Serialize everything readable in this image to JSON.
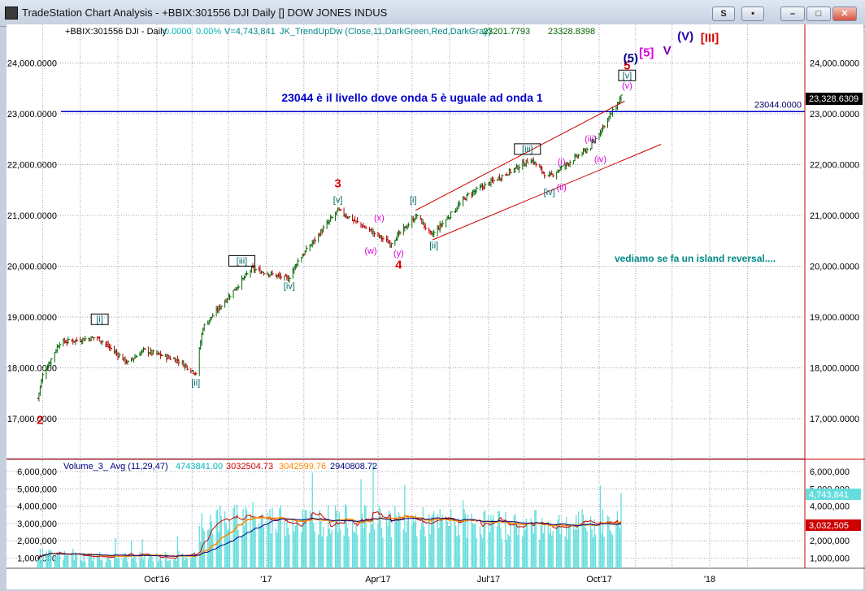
{
  "window": {
    "title": "TradeStation Chart Analysis - +BBIX:301556 DJI Daily [] DOW JONES INDUS",
    "buttons": {
      "symbol": "S",
      "lock": "•",
      "minimize": "–",
      "maximize": "□",
      "close": "✕"
    }
  },
  "colors": {
    "background": "#ffffff",
    "grid": "#9ea6ad",
    "up_bar": "#006400",
    "down_bar": "#b00000",
    "axis_labels": "#000000",
    "right_axis_frame": "#cc0000",
    "channel": "#cc0000",
    "level_line": "#0000cc",
    "volume_bars": "#66dddd",
    "avg_fast": "#cc0000",
    "avg_mid": "#ff8800",
    "avg_slow": "#000080"
  },
  "header": {
    "symbol": "+BBIX:301556 DJI - Daily",
    "change": "0.0000",
    "change_pct": "0.00%",
    "volume": "V=4,743,841",
    "indicator": "JK_TrendUpDw (Close,11,DarkGreen,Red,DarkGray)",
    "val1": "23201.7793",
    "val2": "23328.8398"
  },
  "volume_header": {
    "name": "Volume_3_ Avg (11,29,47)",
    "v": "4743841.00",
    "a1": "3032504.73",
    "a2": "3042599.76",
    "a3": "2940808.72"
  },
  "annotations": {
    "main_note": "23044 è il livello dove onda 5 è uguale ad onda 1",
    "level_tag": "23044.0000",
    "price_tag": "23,328.6309",
    "side_note": "vediamo se fa un island reversal....",
    "vol_tag_top": "4,743,841",
    "vol_tag_bottom": "3,032,505"
  },
  "chart_data": [
    {
      "type": "ohlc",
      "title": "+BBIX:301556 DJI - Daily",
      "ylim": [
        16400,
        24800
      ],
      "y_ticks": [
        "17,000.0000",
        "18,000.0000",
        "19,000.0000",
        "20,000.0000",
        "21,000.0000",
        "22,000.0000",
        "23,000.0000",
        "24,000.0000"
      ],
      "y_tick_values": [
        17000,
        18000,
        19000,
        20000,
        21000,
        22000,
        23000,
        24000
      ],
      "x_ticks": [
        "Oct'16",
        "'17",
        "Apr'17",
        "Jul'17",
        "Oct'17",
        "'18"
      ],
      "grid": true,
      "price_path": [
        {
          "date": "2016-06-27",
          "close": 17400
        },
        {
          "date": "2016-07-01",
          "close": 17850
        },
        {
          "date": "2016-07-15",
          "close": 18500
        },
        {
          "date": "2016-08-15",
          "close": 18600
        },
        {
          "date": "2016-09-09",
          "close": 18100
        },
        {
          "date": "2016-09-22",
          "close": 18350
        },
        {
          "date": "2016-10-20",
          "close": 18150
        },
        {
          "date": "2016-11-04",
          "close": 17900
        },
        {
          "date": "2016-11-10",
          "close": 18800
        },
        {
          "date": "2016-12-20",
          "close": 19950
        },
        {
          "date": "2017-01-19",
          "close": 19750
        },
        {
          "date": "2017-01-27",
          "close": 20100
        },
        {
          "date": "2017-03-01",
          "close": 21100
        },
        {
          "date": "2017-04-13",
          "close": 20450
        },
        {
          "date": "2017-05-05",
          "close": 21000
        },
        {
          "date": "2017-05-17",
          "close": 20600
        },
        {
          "date": "2017-06-16",
          "close": 21400
        },
        {
          "date": "2017-08-07",
          "close": 22100
        },
        {
          "date": "2017-08-21",
          "close": 21750
        },
        {
          "date": "2017-09-25",
          "close": 22350
        },
        {
          "date": "2017-10-05",
          "close": 22750
        },
        {
          "date": "2017-10-16",
          "close": 23150
        },
        {
          "date": "2017-10-20",
          "close": 23330
        }
      ],
      "lines": [
        {
          "name": "level",
          "y": 23044
        },
        {
          "name": "channel_upper",
          "from": {
            "date": "2017-05-04",
            "y": 21100
          },
          "to": {
            "date": "2017-10-23",
            "y": 23250
          }
        },
        {
          "name": "channel_lower",
          "from": {
            "date": "2017-05-18",
            "y": 20520
          },
          "to": {
            "date": "2017-11-22",
            "y": 22400
          }
        }
      ],
      "wave_labels": [
        {
          "text": "2",
          "date": "2016-06-29",
          "y": 16900,
          "color": "#dd0000",
          "size": "big"
        },
        {
          "text": "[i]",
          "date": "2016-08-17",
          "y": 18900,
          "color": "#006666",
          "box": true
        },
        {
          "text": "[ii]",
          "date": "2016-11-04",
          "y": 17650,
          "color": "#006666"
        },
        {
          "text": "[iii]",
          "date": "2016-12-12",
          "y": 20050,
          "color": "#006666",
          "box": true
        },
        {
          "text": "[iv]",
          "date": "2017-01-20",
          "y": 19550,
          "color": "#006666"
        },
        {
          "text": "3",
          "date": "2017-03-01",
          "y": 21550,
          "color": "#dd0000",
          "size": "big"
        },
        {
          "text": "[v]",
          "date": "2017-03-01",
          "y": 21250,
          "color": "#006666"
        },
        {
          "text": "(x)",
          "date": "2017-04-04",
          "y": 20900,
          "color": "#dd00dd"
        },
        {
          "text": "(w)",
          "date": "2017-03-28",
          "y": 20250,
          "color": "#dd00dd"
        },
        {
          "text": "(y)",
          "date": "2017-04-20",
          "y": 20200,
          "color": "#dd00dd"
        },
        {
          "text": "4",
          "date": "2017-04-20",
          "y": 19950,
          "color": "#dd0000",
          "size": "big"
        },
        {
          "text": "[i]",
          "date": "2017-05-02",
          "y": 21250,
          "color": "#006666"
        },
        {
          "text": "[ii]",
          "date": "2017-05-19",
          "y": 20350,
          "color": "#006666"
        },
        {
          "text": "[iii]",
          "date": "2017-08-04",
          "y": 22250,
          "color": "#006666",
          "box": true
        },
        {
          "text": "[iv]",
          "date": "2017-08-22",
          "y": 21400,
          "color": "#006666"
        },
        {
          "text": "(i)",
          "date": "2017-09-01",
          "y": 22000,
          "color": "#dd00dd"
        },
        {
          "text": "(ii)",
          "date": "2017-09-01",
          "y": 21500,
          "color": "#dd00dd"
        },
        {
          "text": "(iii)",
          "date": "2017-09-25",
          "y": 22450,
          "color": "#dd00dd"
        },
        {
          "text": "(iv)",
          "date": "2017-10-03",
          "y": 22050,
          "color": "#dd00dd"
        },
        {
          "text": "(v)",
          "date": "2017-10-25",
          "y": 23500,
          "color": "#dd00dd"
        },
        {
          "text": "[v]",
          "date": "2017-10-25",
          "y": 23700,
          "color": "#006666",
          "box": true
        },
        {
          "text": "5",
          "date": "2017-10-25",
          "y": 23870,
          "color": "#dd0000",
          "size": "big"
        },
        {
          "text": "(5)",
          "date": "2017-10-28",
          "y": 24020,
          "color": "#000088",
          "size": "big"
        },
        {
          "text": "[5]",
          "date": "2017-11-10",
          "y": 24130,
          "color": "#dd00dd",
          "size": "big"
        },
        {
          "text": "V",
          "date": "2017-11-27",
          "y": 24170,
          "color": "#7700aa",
          "size": "big"
        },
        {
          "text": "(V)",
          "date": "2017-12-12",
          "y": 24450,
          "color": "#2200aa",
          "size": "big"
        },
        {
          "text": "[III]",
          "date": "2018-01-01",
          "y": 24420,
          "color": "#dd0000",
          "size": "big"
        }
      ]
    },
    {
      "type": "bar",
      "title": "Volume_3_ Avg (11,29,47)",
      "ylim": [
        400000,
        6200000
      ],
      "y_ticks": [
        "1,000,000",
        "2,000,000",
        "3,000,000",
        "4,000,000",
        "5,000,000",
        "6,000,000"
      ],
      "y_tick_values": [
        1000000,
        2000000,
        3000000,
        4000000,
        5000000,
        6000000
      ],
      "volume_profile": [
        {
          "date": "2016-06-27",
          "volume": 1200000
        },
        {
          "date": "2016-08-01",
          "volume": 1100000
        },
        {
          "date": "2016-09-30",
          "volume": 1050000
        },
        {
          "date": "2016-11-04",
          "volume": 1150000
        },
        {
          "date": "2016-11-09",
          "volume": 3200000
        },
        {
          "date": "2016-12-20",
          "volume": 3200000
        },
        {
          "date": "2017-03-01",
          "volume": 3200000
        },
        {
          "date": "2017-06-01",
          "volume": 3000000
        },
        {
          "date": "2017-08-01",
          "volume": 2900000
        },
        {
          "date": "2017-10-20",
          "volume": 3000000
        }
      ],
      "last_volume": 4743841,
      "averages": [
        {
          "name": "Avg 11",
          "last": 3032504.73
        },
        {
          "name": "Avg 29",
          "last": 3042599.76
        },
        {
          "name": "Avg 47",
          "last": 2940808.72
        }
      ]
    }
  ]
}
